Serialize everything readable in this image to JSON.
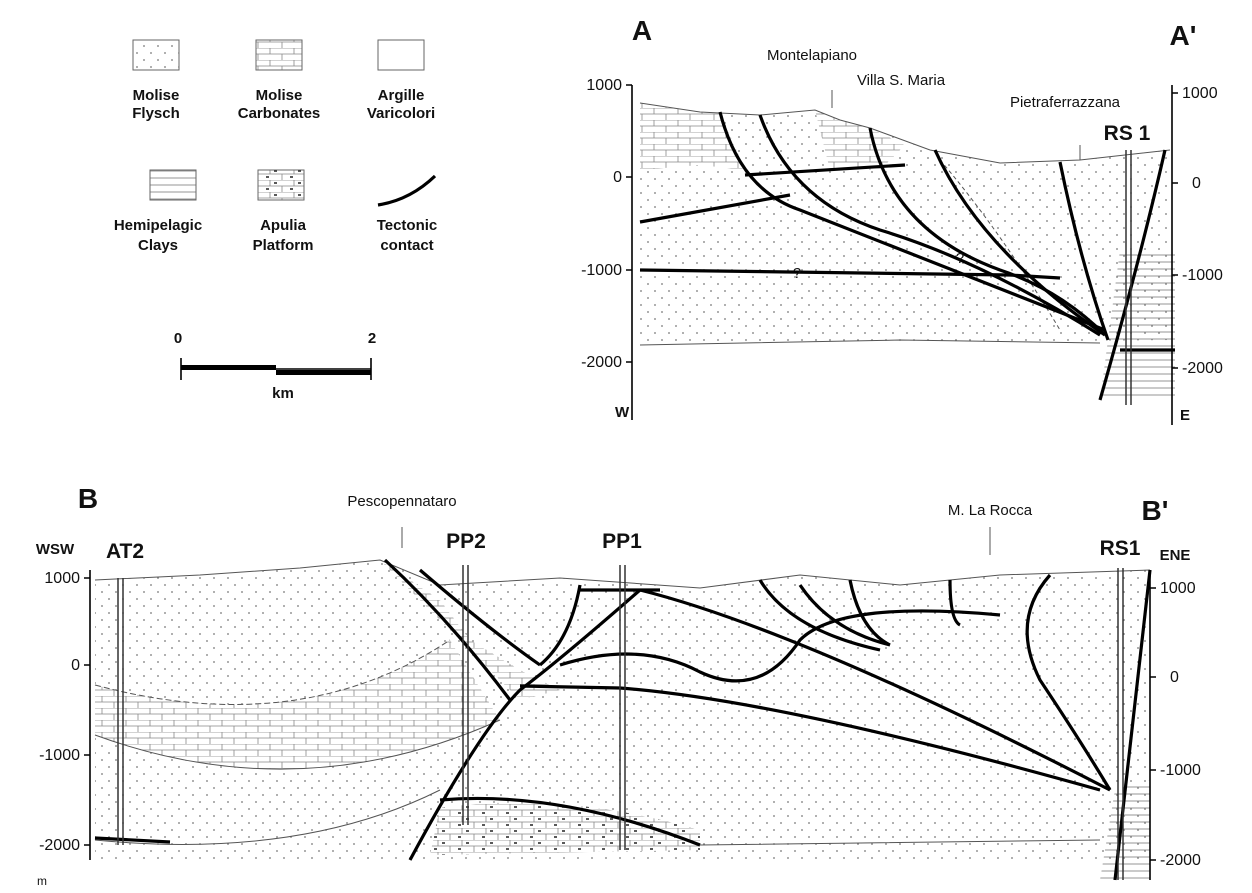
{
  "legend": {
    "items": [
      {
        "lines": [
          "Molise",
          "Flysch"
        ]
      },
      {
        "lines": [
          "Molise",
          "Carbonates"
        ]
      },
      {
        "lines": [
          "Argille",
          "Varicolori"
        ]
      },
      {
        "lines": [
          "Hemipelagic",
          "Clays"
        ]
      },
      {
        "lines": [
          "Apulia",
          "Platform"
        ]
      },
      {
        "lines": [
          "Tectonic",
          "contact"
        ]
      }
    ],
    "scale": {
      "start": "0",
      "end": "2",
      "unit": "km"
    }
  },
  "section_a": {
    "label_left": "A",
    "label_right": "A'",
    "places": [
      "Montelapiano",
      "Villa S. Maria",
      "Pietraferrazzana"
    ],
    "well": "RS 1",
    "left_ticks": [
      "1000",
      "0",
      "-1000",
      "-2000"
    ],
    "right_ticks": [
      "1000",
      "0",
      "-1000",
      "-2000"
    ],
    "dir_left": "W",
    "dir_right": "E",
    "queries": [
      "?",
      "?"
    ]
  },
  "section_b": {
    "label_left": "B",
    "label_right": "B'",
    "places": [
      "Pescopennataro",
      "M. La Rocca"
    ],
    "wells": [
      "AT2",
      "PP2",
      "PP1",
      "RS1"
    ],
    "left_ticks": [
      "1000",
      "0",
      "-1000",
      "-2000"
    ],
    "right_ticks": [
      "1000",
      "0",
      "-1000",
      "-2000"
    ],
    "dir_left": "WSW",
    "dir_right": "ENE",
    "unit": "m"
  }
}
